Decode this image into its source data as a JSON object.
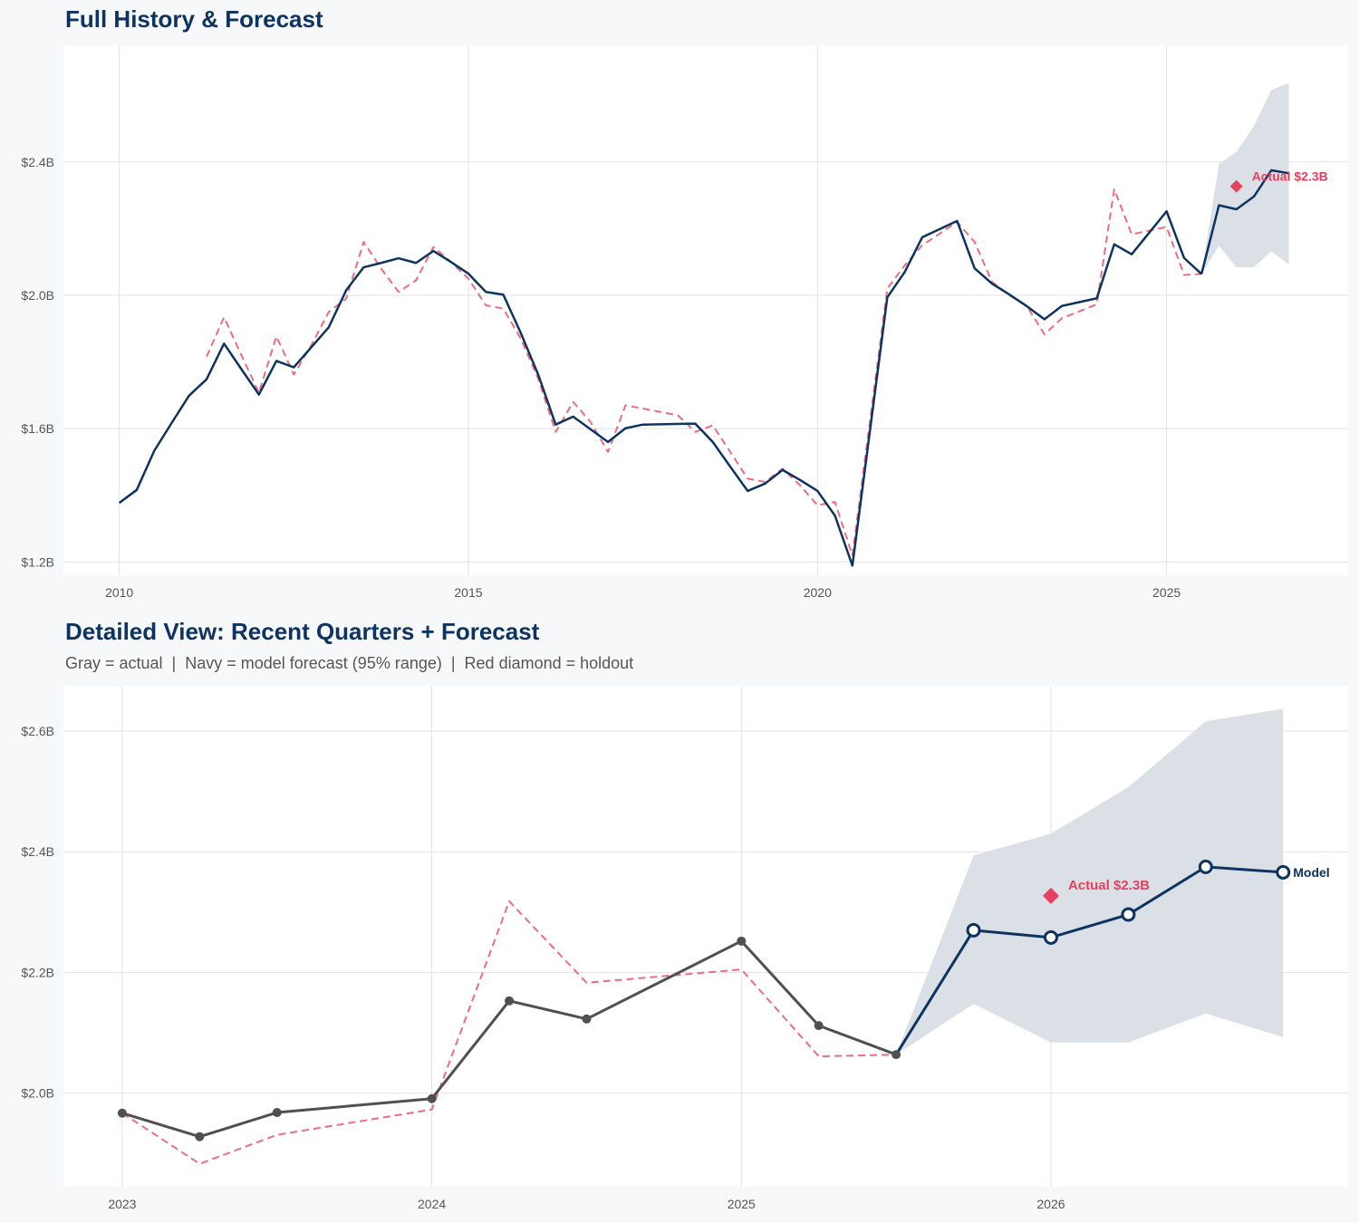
{
  "chart_data": [
    {
      "type": "line",
      "title": "Full History & Forecast",
      "subtitle": "",
      "xlim": [
        2009.2,
        2027.6
      ],
      "ylim": [
        1.16,
        2.75
      ],
      "x_ticks": [
        2010,
        2015,
        2020,
        2025
      ],
      "x_tick_labels": [
        "2010",
        "2015",
        "2020",
        "2025"
      ],
      "y_ticks": [
        1.2,
        1.6,
        2.0,
        2.4
      ],
      "y_tick_labels": [
        "$1.2B",
        "$1.6B",
        "$2.0B",
        "$2.4B"
      ],
      "grid": true,
      "colors": {
        "actual": "#0d3461",
        "forecast": "#0d3461",
        "fitted": "#ee6b80",
        "band": "#dbe0e7",
        "holdout": "#e5405e"
      },
      "actual": {
        "x": [
          2010,
          2010.25,
          2010.5,
          2010.75,
          2011,
          2011.25,
          2011.5,
          2011.75,
          2012,
          2012.25,
          2012.5,
          2012.75,
          2013,
          2013.25,
          2013.5,
          2013.75,
          2014,
          2014.25,
          2014.5,
          2014.75,
          2015,
          2015.25,
          2015.5,
          2015.75,
          2016,
          2016.25,
          2016.5,
          2016.75,
          2017,
          2017.25,
          2017.5,
          2018.25,
          2018.5,
          2018.75,
          2019,
          2019.25,
          2019.5,
          2019.75,
          2020,
          2020.25,
          2020.5,
          2021,
          2021.25,
          2021.5,
          2022,
          2022.25,
          2022.5,
          2022.75,
          2023,
          2023.25,
          2023.5,
          2024,
          2024.25,
          2024.5,
          2025,
          2025.25,
          2025.5
        ],
        "y": [
          1.377,
          1.416,
          1.533,
          1.617,
          1.699,
          1.748,
          1.855,
          1.778,
          1.702,
          1.803,
          1.784,
          1.844,
          1.904,
          2.015,
          2.084,
          2.097,
          2.111,
          2.097,
          2.133,
          2.1,
          2.065,
          2.01,
          2.002,
          1.887,
          1.762,
          1.612,
          1.636,
          1.598,
          1.56,
          1.601,
          1.612,
          1.615,
          1.56,
          1.486,
          1.413,
          1.435,
          1.476,
          1.446,
          1.413,
          1.339,
          1.189,
          1.994,
          2.07,
          2.174,
          2.223,
          2.081,
          2.035,
          2.002,
          1.967,
          1.928,
          1.968,
          1.991,
          2.153,
          2.123,
          2.252,
          2.112,
          2.064
        ]
      },
      "fitted": {
        "x": [
          2011.25,
          2011.5,
          2011.75,
          2012,
          2012.25,
          2012.5,
          2012.75,
          2013,
          2013.25,
          2013.5,
          2013.75,
          2014,
          2014.25,
          2014.5,
          2014.75,
          2015,
          2015.25,
          2015.5,
          2015.75,
          2016,
          2016.25,
          2016.5,
          2016.75,
          2017,
          2017.25,
          2017.5,
          2018,
          2018.25,
          2018.5,
          2018.75,
          2019,
          2019.25,
          2019.5,
          2019.75,
          2020,
          2020.25,
          2020.5,
          2021,
          2021.25,
          2021.5,
          2022,
          2022.25,
          2022.5,
          2022.75,
          2023,
          2023.25,
          2023.5,
          2024,
          2024.25,
          2024.5,
          2025,
          2025.25,
          2025.5
        ],
        "y": [
          1.816,
          1.934,
          1.82,
          1.707,
          1.877,
          1.762,
          1.85,
          1.95,
          1.99,
          2.16,
          2.08,
          2.01,
          2.045,
          2.145,
          2.1,
          2.05,
          1.97,
          1.96,
          1.87,
          1.75,
          1.59,
          1.68,
          1.62,
          1.53,
          1.67,
          1.66,
          1.64,
          1.59,
          1.61,
          1.53,
          1.45,
          1.44,
          1.48,
          1.43,
          1.37,
          1.38,
          1.22,
          2.02,
          2.09,
          2.15,
          2.22,
          2.16,
          2.04,
          2.0,
          1.967,
          1.883,
          1.931,
          1.973,
          2.318,
          2.183,
          2.205,
          2.061,
          2.064
        ]
      },
      "forecast": {
        "x": [
          2025.5,
          2025.75,
          2026,
          2026.25,
          2026.5,
          2026.75
        ],
        "y": [
          2.064,
          2.27,
          2.258,
          2.296,
          2.375,
          2.366
        ]
      },
      "band": {
        "x": [
          2025.5,
          2025.75,
          2026,
          2026.25,
          2026.5,
          2026.75
        ],
        "lower": [
          2.064,
          2.148,
          2.084,
          2.084,
          2.132,
          2.093
        ],
        "upper": [
          2.064,
          2.394,
          2.43,
          2.507,
          2.616,
          2.637
        ]
      },
      "holdout": {
        "x": 2026,
        "y": 2.327,
        "label": "Actual $2.3B"
      },
      "markers": false,
      "end_label": ""
    },
    {
      "type": "line",
      "title": "Detailed View: Recent Quarters + Forecast",
      "subtitle": "Gray = actual  |  Navy = model forecast (95% range)  |  Red diamond = holdout",
      "xlim": [
        2022.81,
        2026.96
      ],
      "ylim": [
        1.845,
        2.675
      ],
      "x_ticks": [
        2023,
        2024,
        2025,
        2026
      ],
      "x_tick_labels": [
        "2023",
        "2024",
        "2025",
        "2026"
      ],
      "y_ticks": [
        2.0,
        2.2,
        2.4,
        2.6
      ],
      "y_tick_labels": [
        "$2.0B",
        "$2.2B",
        "$2.4B",
        "$2.6B"
      ],
      "grid": true,
      "colors": {
        "actual": "#505050",
        "forecast": "#0d3461",
        "fitted": "#ee6b80",
        "band": "#dbe0e7",
        "holdout": "#e5405e"
      },
      "actual": {
        "x": [
          2023,
          2023.25,
          2023.5,
          2024,
          2024.25,
          2024.5,
          2025,
          2025.25,
          2025.5
        ],
        "y": [
          1.967,
          1.928,
          1.968,
          1.991,
          2.153,
          2.123,
          2.252,
          2.112,
          2.064
        ]
      },
      "fitted": {
        "x": [
          2023,
          2023.25,
          2023.5,
          2024,
          2024.25,
          2024.5,
          2025,
          2025.25,
          2025.5
        ],
        "y": [
          1.967,
          1.883,
          1.931,
          1.973,
          2.318,
          2.183,
          2.205,
          2.061,
          2.064
        ]
      },
      "forecast": {
        "x": [
          2025.5,
          2025.75,
          2026,
          2026.25,
          2026.5,
          2026.75
        ],
        "y": [
          2.064,
          2.27,
          2.258,
          2.296,
          2.375,
          2.366
        ]
      },
      "band": {
        "x": [
          2025.5,
          2025.75,
          2026,
          2026.25,
          2026.5,
          2026.75
        ],
        "lower": [
          2.064,
          2.148,
          2.084,
          2.084,
          2.132,
          2.093
        ],
        "upper": [
          2.064,
          2.394,
          2.43,
          2.507,
          2.616,
          2.637
        ]
      },
      "holdout": {
        "x": 2026,
        "y": 2.327,
        "label": "Actual $2.3B"
      },
      "markers": true,
      "end_label": "Model"
    }
  ]
}
